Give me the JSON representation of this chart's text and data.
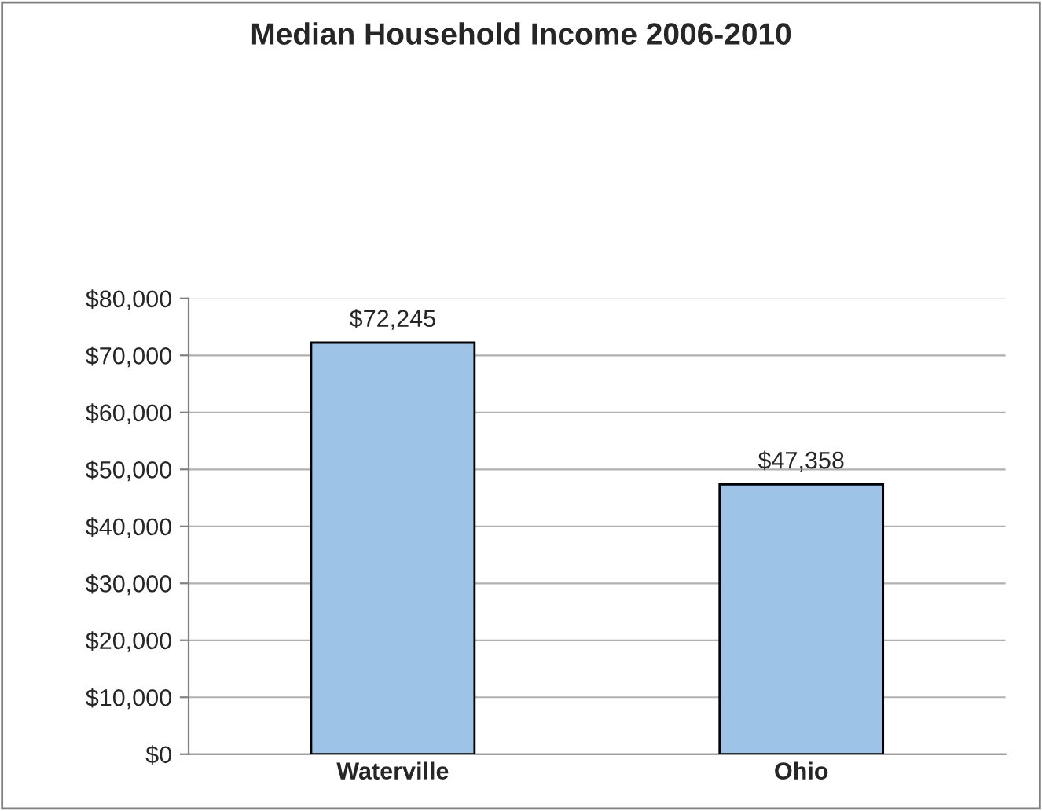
{
  "chart_data": {
    "type": "bar",
    "title": "Median Household Income 2006-2010",
    "categories": [
      "Waterville",
      "Ohio"
    ],
    "values": [
      72245,
      47358
    ],
    "color": "#9dc3e6",
    "value_labels": [
      "$72,245",
      "$47,358"
    ],
    "ylim": [
      0,
      80000
    ],
    "yticks": [
      {
        "value": 0,
        "label": "$0"
      },
      {
        "value": 10000,
        "label": "$10,000"
      },
      {
        "value": 20000,
        "label": "$20,000"
      },
      {
        "value": 30000,
        "label": "$30,000"
      },
      {
        "value": 40000,
        "label": "$40,000"
      },
      {
        "value": 50000,
        "label": "$50,000"
      },
      {
        "value": 60000,
        "label": "$60,000"
      },
      {
        "value": 70000,
        "label": "$70,000"
      },
      {
        "value": 80000,
        "label": "$80,000"
      }
    ],
    "grid": "y",
    "legend": false
  }
}
